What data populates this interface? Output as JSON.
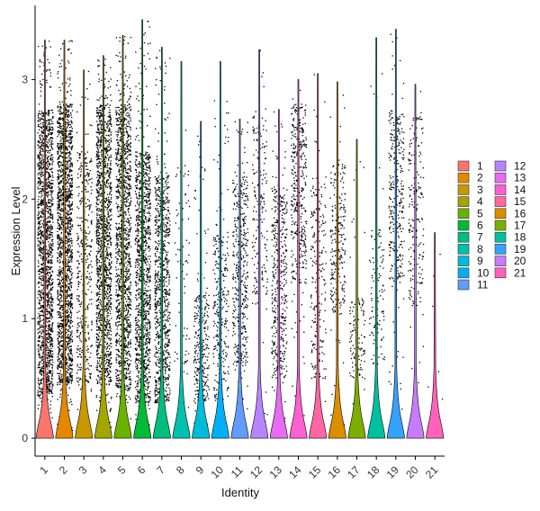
{
  "chart_data": {
    "type": "violin",
    "xlabel": "Identity",
    "ylabel": "Expression Level",
    "ylim": [
      -0.15,
      3.62
    ],
    "yticks": [
      0,
      1,
      2,
      3
    ],
    "categories": [
      "1",
      "2",
      "3",
      "4",
      "5",
      "6",
      "7",
      "8",
      "9",
      "10",
      "11",
      "12",
      "13",
      "14",
      "15",
      "16",
      "17",
      "18",
      "19",
      "20",
      "21"
    ],
    "colors": [
      "#F8766D",
      "#E58700",
      "#C99800",
      "#A3A500",
      "#6BB100",
      "#00BA38",
      "#00BF7D",
      "#00C0AF",
      "#00BCD8",
      "#00B0F6",
      "#619CFF",
      "#B983FF",
      "#E76BF3",
      "#FD61D1",
      "#FF67A4",
      "#DB8E00",
      "#7CAE00",
      "#00C19F",
      "#35A2FF",
      "#C77CFF",
      "#FF62BC"
    ],
    "color_order": [
      "1",
      "2",
      "3",
      "4",
      "5",
      "6",
      "7",
      "8",
      "9",
      "10",
      "11",
      "12",
      "13",
      "14",
      "15",
      "16",
      "17",
      "18",
      "19",
      "20",
      "21"
    ],
    "series": [
      {
        "category": "1",
        "max": 3.33,
        "dense_low": 0.35,
        "dense_high": 2.75,
        "points": 1800
      },
      {
        "category": "2",
        "max": 3.33,
        "dense_low": 0.45,
        "dense_high": 2.8,
        "points": 1800
      },
      {
        "category": "3",
        "max": 3.08,
        "dense_low": 0.4,
        "dense_high": 2.4,
        "points": 420
      },
      {
        "category": "4",
        "max": 3.2,
        "dense_low": 0.45,
        "dense_high": 2.8,
        "points": 1500
      },
      {
        "category": "5",
        "max": 3.37,
        "dense_low": 0.4,
        "dense_high": 2.8,
        "points": 1400
      },
      {
        "category": "6",
        "max": 3.5,
        "dense_low": 0.3,
        "dense_high": 2.4,
        "points": 1200
      },
      {
        "category": "7",
        "max": 3.27,
        "dense_low": 0.3,
        "dense_high": 2.2,
        "points": 900
      },
      {
        "category": "8",
        "max": 3.15,
        "dense_low": 0.5,
        "dense_high": 2.3,
        "points": 80
      },
      {
        "category": "9",
        "max": 2.65,
        "dense_low": 0.3,
        "dense_high": 1.2,
        "points": 300
      },
      {
        "category": "10",
        "max": 3.15,
        "dense_low": 0.3,
        "dense_high": 1.7,
        "points": 300
      },
      {
        "category": "11",
        "max": 2.67,
        "dense_low": 0.6,
        "dense_high": 2.2,
        "points": 420
      },
      {
        "category": "12",
        "max": 3.25,
        "dense_low": 1.2,
        "dense_high": 2.7,
        "points": 200
      },
      {
        "category": "13",
        "max": 2.75,
        "dense_low": 0.5,
        "dense_high": 2.1,
        "points": 450
      },
      {
        "category": "14",
        "max": 3.0,
        "dense_low": 1.3,
        "dense_high": 2.8,
        "points": 400
      },
      {
        "category": "15",
        "max": 3.05,
        "dense_low": 0.5,
        "dense_high": 2.2,
        "points": 220
      },
      {
        "category": "16",
        "max": 2.98,
        "dense_low": 1.0,
        "dense_high": 2.3,
        "points": 260
      },
      {
        "category": "17",
        "max": 2.5,
        "dense_low": 0.5,
        "dense_high": 1.2,
        "points": 130
      },
      {
        "category": "18",
        "max": 3.35,
        "dense_low": 0.6,
        "dense_high": 1.8,
        "points": 110
      },
      {
        "category": "19",
        "max": 3.42,
        "dense_low": 1.3,
        "dense_high": 2.75,
        "points": 330
      },
      {
        "category": "20",
        "max": 2.96,
        "dense_low": 1.1,
        "dense_high": 2.7,
        "points": 200
      },
      {
        "category": "21",
        "max": 1.72,
        "dense_low": 0.2,
        "dense_high": 1.7,
        "points": 6
      }
    ],
    "legend": {
      "position": "right",
      "columns": [
        [
          "1",
          "2",
          "3",
          "4",
          "5",
          "6",
          "7",
          "8",
          "9",
          "10",
          "11"
        ],
        [
          "12",
          "13",
          "14",
          "15",
          "16",
          "17",
          "18",
          "19",
          "20",
          "21"
        ]
      ]
    },
    "grid": false
  }
}
